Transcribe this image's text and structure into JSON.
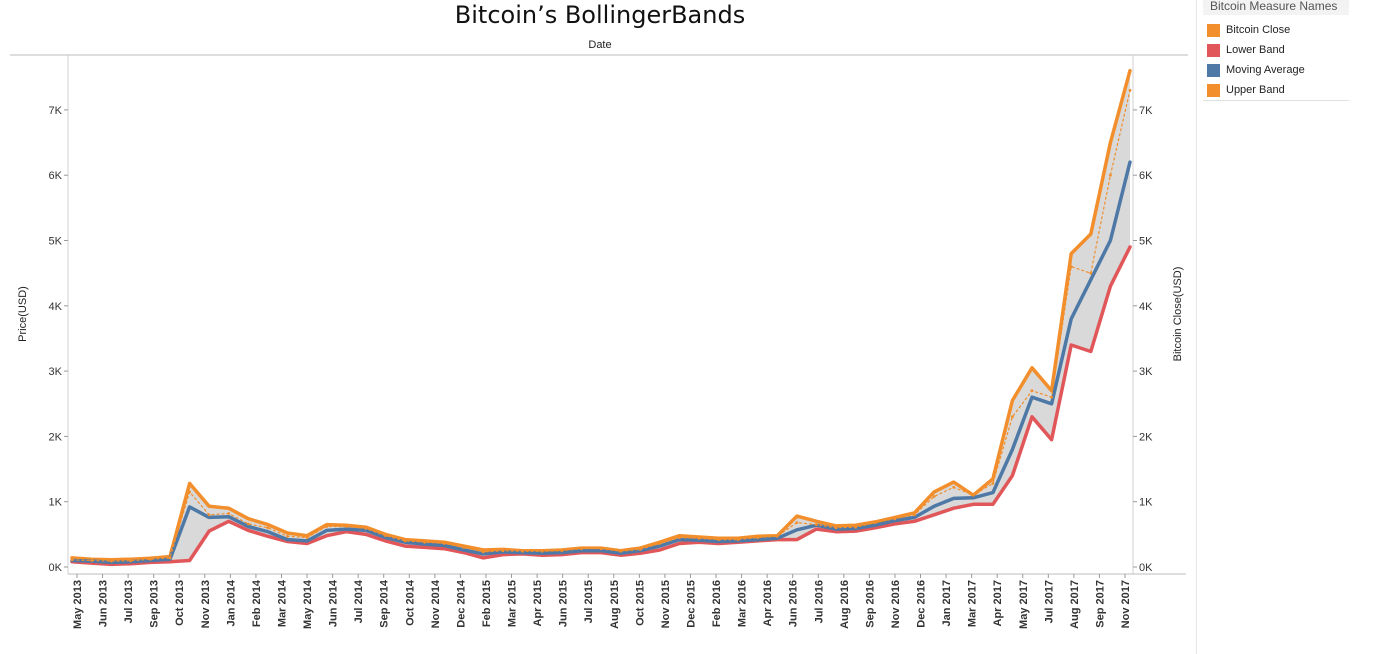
{
  "chart_data": {
    "type": "line",
    "title": "Bitcoin’s BollingerBands",
    "xlabel": "Date",
    "ylabel": "Price(USD)",
    "y2label": "Bitcoin Close(USD)",
    "ylim": [
      0,
      7700
    ],
    "grid": false,
    "legend_position": "right",
    "yticks": [
      {
        "value": 0,
        "label": "0K"
      },
      {
        "value": 1000,
        "label": "1K"
      },
      {
        "value": 2000,
        "label": "2K"
      },
      {
        "value": 3000,
        "label": "3K"
      },
      {
        "value": 4000,
        "label": "4K"
      },
      {
        "value": 5000,
        "label": "5K"
      },
      {
        "value": 6000,
        "label": "6K"
      },
      {
        "value": 7000,
        "label": "7K"
      }
    ],
    "x_labels": [
      "May 2013",
      "Jun 2013",
      "Jul 2013",
      "Sep 2013",
      "Oct 2013",
      "Nov 2013",
      "Jan 2014",
      "Feb 2014",
      "Mar 2014",
      "May 2014",
      "Jun 2014",
      "Jul 2014",
      "Sep 2014",
      "Oct 2014",
      "Nov 2014",
      "Dec 2014",
      "Feb 2015",
      "Mar 2015",
      "Apr 2015",
      "Jun 2015",
      "Jul 2015",
      "Aug 2015",
      "Oct 2015",
      "Nov 2015",
      "Dec 2015",
      "Feb 2016",
      "Mar 2016",
      "Apr 2016",
      "Jun 2016",
      "Jul 2016",
      "Aug 2016",
      "Sep 2016",
      "Nov 2016",
      "Dec 2016",
      "Jan 2017",
      "Mar 2017",
      "Apr 2017",
      "May 2017",
      "Jul 2017",
      "Aug 2017",
      "Sep 2017",
      "Nov 2017"
    ],
    "x": [
      "2013-05",
      "2013-06",
      "2013-07",
      "2013-08",
      "2013-09",
      "2013-10",
      "2013-11",
      "2013-12",
      "2014-01",
      "2014-02",
      "2014-03",
      "2014-04",
      "2014-05",
      "2014-06",
      "2014-07",
      "2014-08",
      "2014-09",
      "2014-10",
      "2014-11",
      "2014-12",
      "2015-01",
      "2015-02",
      "2015-03",
      "2015-04",
      "2015-05",
      "2015-06",
      "2015-07",
      "2015-08",
      "2015-09",
      "2015-10",
      "2015-11",
      "2015-12",
      "2016-01",
      "2016-02",
      "2016-03",
      "2016-04",
      "2016-05",
      "2016-06",
      "2016-07",
      "2016-08",
      "2016-09",
      "2016-10",
      "2016-11",
      "2016-12",
      "2017-01",
      "2017-02",
      "2017-03",
      "2017-04",
      "2017-05",
      "2017-06",
      "2017-07",
      "2017-08",
      "2017-09",
      "2017-10",
      "2017-11"
    ],
    "series": [
      {
        "name": "Upper Band",
        "color": "#f28e2b",
        "values": [
          140,
          120,
          110,
          120,
          135,
          160,
          1280,
          930,
          900,
          740,
          650,
          520,
          480,
          650,
          640,
          610,
          500,
          420,
          400,
          380,
          320,
          260,
          270,
          250,
          250,
          260,
          290,
          290,
          250,
          290,
          380,
          480,
          460,
          440,
          440,
          470,
          480,
          780,
          700,
          630,
          640,
          690,
          760,
          830,
          1150,
          1300,
          1100,
          1350,
          2550,
          3050,
          2700,
          4800,
          5100,
          6500,
          7600
        ]
      },
      {
        "name": "Moving Average",
        "color": "#4e79a7",
        "values": [
          100,
          90,
          70,
          80,
          100,
          120,
          920,
          760,
          770,
          620,
          540,
          420,
          400,
          560,
          580,
          560,
          450,
          380,
          350,
          330,
          260,
          200,
          230,
          220,
          210,
          220,
          250,
          250,
          210,
          250,
          320,
          420,
          410,
          390,
          400,
          420,
          440,
          570,
          640,
          580,
          590,
          640,
          710,
          760,
          930,
          1050,
          1060,
          1140,
          1800,
          2600,
          2500,
          3800,
          4400,
          5000,
          6200
        ]
      },
      {
        "name": "Lower Band",
        "color": "#e15759",
        "values": [
          80,
          60,
          40,
          50,
          70,
          80,
          100,
          550,
          700,
          560,
          470,
          390,
          360,
          480,
          540,
          500,
          400,
          320,
          300,
          280,
          220,
          140,
          190,
          200,
          180,
          190,
          220,
          220,
          180,
          210,
          260,
          360,
          380,
          360,
          380,
          400,
          420,
          420,
          580,
          540,
          550,
          600,
          660,
          700,
          800,
          900,
          960,
          960,
          1400,
          2300,
          1950,
          3400,
          3300,
          4300,
          4900
        ]
      },
      {
        "name": "Bitcoin Close",
        "color": "#f28e2b",
        "values": [
          110,
          100,
          90,
          95,
          120,
          140,
          1150,
          800,
          820,
          660,
          600,
          470,
          450,
          620,
          620,
          590,
          480,
          400,
          380,
          360,
          300,
          230,
          250,
          240,
          240,
          250,
          280,
          280,
          240,
          270,
          360,
          450,
          440,
          420,
          420,
          450,
          470,
          680,
          650,
          600,
          610,
          680,
          740,
          800,
          1080,
          1220,
          1100,
          1280,
          2300,
          2700,
          2600,
          4600,
          4500,
          6000,
          7300
        ]
      }
    ]
  },
  "legend": {
    "title": "Bitcoin Measure Names",
    "items": [
      {
        "label": "Bitcoin Close",
        "color": "#f28e2b"
      },
      {
        "label": "Lower Band",
        "color": "#e15759"
      },
      {
        "label": "Moving Average",
        "color": "#4e79a7"
      },
      {
        "label": "Upper Band",
        "color": "#f28e2b"
      }
    ]
  },
  "band_fill_color": "#d9d9d9",
  "right_yticks": [
    "0K",
    "1K",
    "2K",
    "3K",
    "4K",
    "5K",
    "6K",
    "7K"
  ]
}
